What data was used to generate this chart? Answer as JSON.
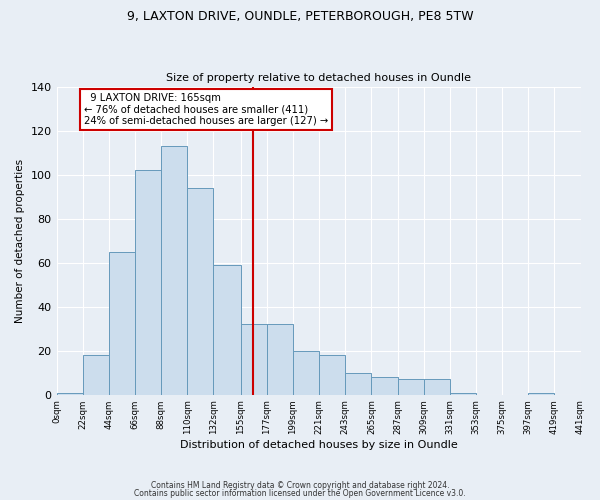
{
  "title1": "9, LAXTON DRIVE, OUNDLE, PETERBOROUGH, PE8 5TW",
  "title2": "Size of property relative to detached houses in Oundle",
  "xlabel": "Distribution of detached houses by size in Oundle",
  "ylabel": "Number of detached properties",
  "property_size": 165,
  "property_line_color": "#cc0000",
  "bar_color": "#ccdded",
  "bar_edge_color": "#6699bb",
  "bin_edges": [
    0,
    22,
    44,
    66,
    88,
    110,
    132,
    155,
    177,
    199,
    221,
    243,
    265,
    287,
    309,
    331,
    353,
    375,
    397,
    419,
    441
  ],
  "bin_labels": [
    "0sqm",
    "22sqm",
    "44sqm",
    "66sqm",
    "88sqm",
    "110sqm",
    "132sqm",
    "155sqm",
    "177sqm",
    "199sqm",
    "221sqm",
    "243sqm",
    "265sqm",
    "287sqm",
    "309sqm",
    "331sqm",
    "353sqm",
    "375sqm",
    "397sqm",
    "419sqm",
    "441sqm"
  ],
  "bar_heights": [
    1,
    18,
    65,
    102,
    113,
    94,
    59,
    32,
    32,
    20,
    18,
    10,
    8,
    7,
    7,
    1,
    0,
    0,
    1,
    0
  ],
  "annotation_text": "  9 LAXTON DRIVE: 165sqm\n← 76% of detached houses are smaller (411)\n24% of semi-detached houses are larger (127) →",
  "annotation_box_color": "#ffffff",
  "annotation_box_edge": "#cc0000",
  "footer1": "Contains HM Land Registry data © Crown copyright and database right 2024.",
  "footer2": "Contains public sector information licensed under the Open Government Licence v3.0.",
  "bg_color": "#e8eef5",
  "plot_bg_color": "#e8eef5",
  "ylim": [
    0,
    140
  ],
  "xlim": [
    0,
    441
  ],
  "grid_color": "#ffffff"
}
